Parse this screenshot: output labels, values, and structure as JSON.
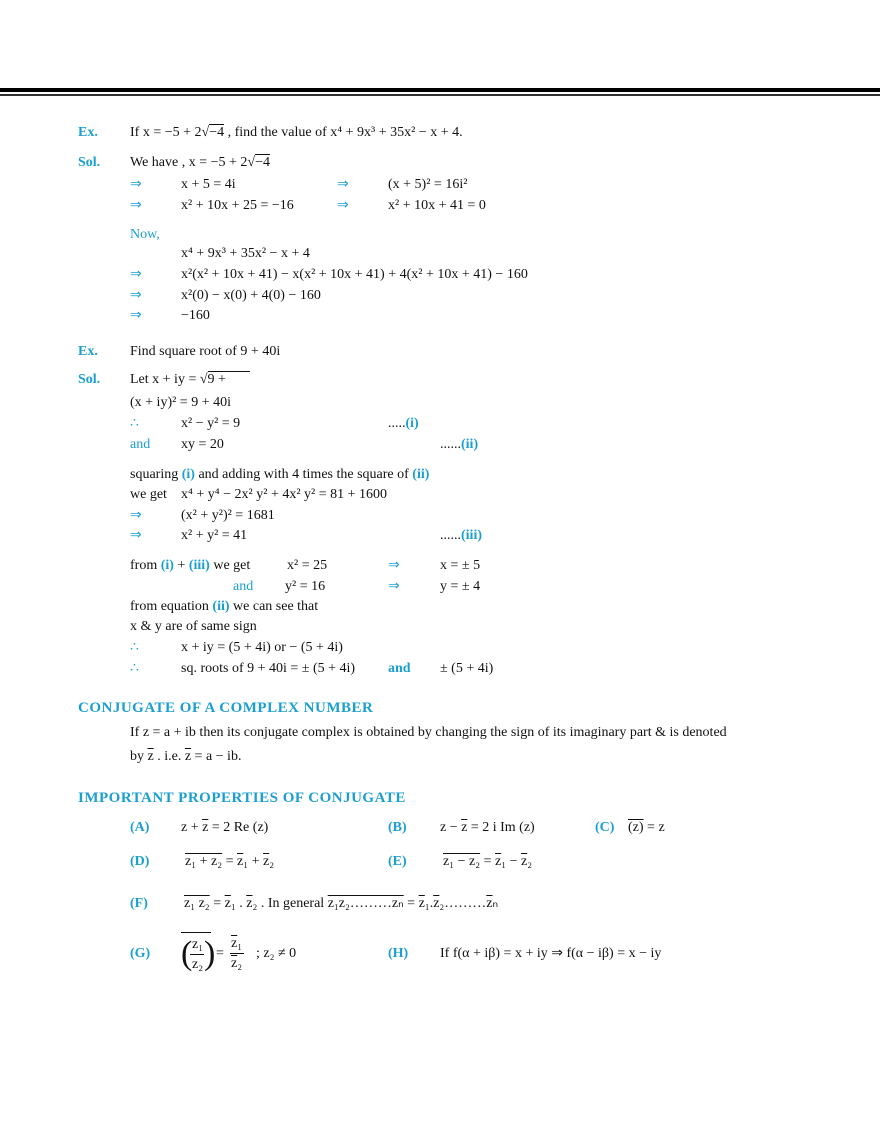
{
  "colors": {
    "accent": "#1a9fd0",
    "text": "#111111"
  },
  "ex1": {
    "label": "Ex.",
    "q_pre": "If  x = −5 + 2",
    "q_root": "−4",
    "q_post": " , find the value of x⁴ + 9x³ + 35x² − x + 4.",
    "sol_label": "Sol.",
    "sol_pre": "We have ,  x = −5 + 2",
    "sol_root": "−4",
    "arrow": "⇒",
    "l1a": "x + 5 = 4i",
    "l1b": "(x + 5)² = 16i²",
    "l2a": "x² + 10x + 25 = −16",
    "l2b": "x² + 10x + 41 = 0",
    "now": "Now,",
    "l3": "x⁴ + 9x³ + 35x² − x + 4",
    "l4": "x²(x² + 10x + 41) − x(x² + 10x + 41) + 4(x² + 10x + 41) − 160",
    "l5": "x²(0) − x(0) + 4(0) − 160",
    "l6": "−160"
  },
  "ex2": {
    "label": "Ex.",
    "q": "Find square root of 9 + 40i",
    "sol_label": "Sol.",
    "let": "Let x + iy = ",
    "let_root": "9 + ",
    "l1": "(x + iy)² = 9 + 40i",
    "therefore": "∴",
    "and": "and",
    "arrow": "⇒",
    "l2": "x² − y² = 9",
    "l2_dots": ".....",
    "l2_ref": "(i)",
    "l3": "xy = 20",
    "l3_dots": "......",
    "l3_ref": "(ii)",
    "sq1": "squaring ",
    "sq_i": "(i)",
    "sq2": " and adding with 4 times the square of ",
    "sq_ii": "(ii)",
    "weget": "we get",
    "l4": "x⁴ + y⁴ − 2x² y² + 4x² y² = 81 + 1600",
    "l5": "(x² + y²)²  = 1681",
    "l6": "x² + y² = 41",
    "l6_dots": "......",
    "l6_ref": "(iii)",
    "from1": "from ",
    "from_i": "(i)",
    "from_plus": " + ",
    "from_iii": "(iii)",
    "from2": " we get",
    "x2": "x² = 25",
    "xres": "x = ± 5",
    "y2": "y² = 16",
    "yres": "y = ± 4",
    "fe1": "from equation ",
    "fe_ii": "(ii)",
    "fe2": " we can see that",
    "same": "x & y are of same sign",
    "l7": "x + iy = (5 + 4i) or − (5 + 4i)",
    "l8": "sq. roots of 9 + 40i = ± (5 + 4i)",
    "l8_and": "and",
    "l8_b": "± (5 + 4i)"
  },
  "conj": {
    "heading": "CONJUGATE OF A COMPLEX NUMBER",
    "p1": "If  z = a + ib  then  its  conjugate  complex  is  obtained  by  changing  the  sign  of  its  imaginary part  &  is  denoted",
    "p2a": "by ",
    "p2z": "z",
    "p2b": " . i.e.  ",
    "p2z2": "z",
    "p2c": " = a − ib."
  },
  "props": {
    "heading": "IMPORTANT   PROPERTIES   OF  CONJUGATE",
    "A": {
      "label": "(A)",
      "pre": "z + ",
      "z": "z",
      "post": " = 2 Re (z)"
    },
    "B": {
      "label": "(B)",
      "pre": "z − ",
      "z": "z",
      "post": " = 2 i Im (z)"
    },
    "C": {
      "label": "(C)",
      "z": "(z)",
      "post": " = z"
    },
    "D": {
      "label": "(D)",
      "lhs": "z₁ + z₂",
      "eq": " = ",
      "r1": "z",
      "s1": "₁",
      "plus": " + ",
      "r2": "z",
      "s2": "₂"
    },
    "E": {
      "label": "(E)",
      "lhs": "z₁ − z₂",
      "eq": " = ",
      "r1": "z",
      "s1": "₁",
      "minus": " − ",
      "r2": "z",
      "s2": "₂"
    },
    "F": {
      "label": "(F)",
      "lhs": "z₁  z₂",
      "eq": " = ",
      "r1": "z",
      "s1": "₁",
      "dot": " . ",
      "r2": "z",
      "s2": "₂",
      "gen": " . In general ",
      "lhs2": "z₁z₂………zₙ",
      "eq2": " = ",
      "g1": "z",
      "gs1": "₁",
      ".": ".",
      "g2": "z",
      "gs2": "₂",
      "gdots": "………",
      "g3": "z",
      "gs3": "ₙ"
    },
    "G": {
      "label": "(G)",
      "num": "z₁",
      "den": "z₂",
      "eq": "=",
      "rnum": "z",
      "rnum_s": "₁",
      "rden": "z",
      "rden_s": "₂",
      "cond": ";   z₂ ≠ 0"
    },
    "H": {
      "label": "(H)",
      "text": "If  f(α + iβ) = x + iy ⇒ f(α − iβ) = x − iy"
    }
  }
}
